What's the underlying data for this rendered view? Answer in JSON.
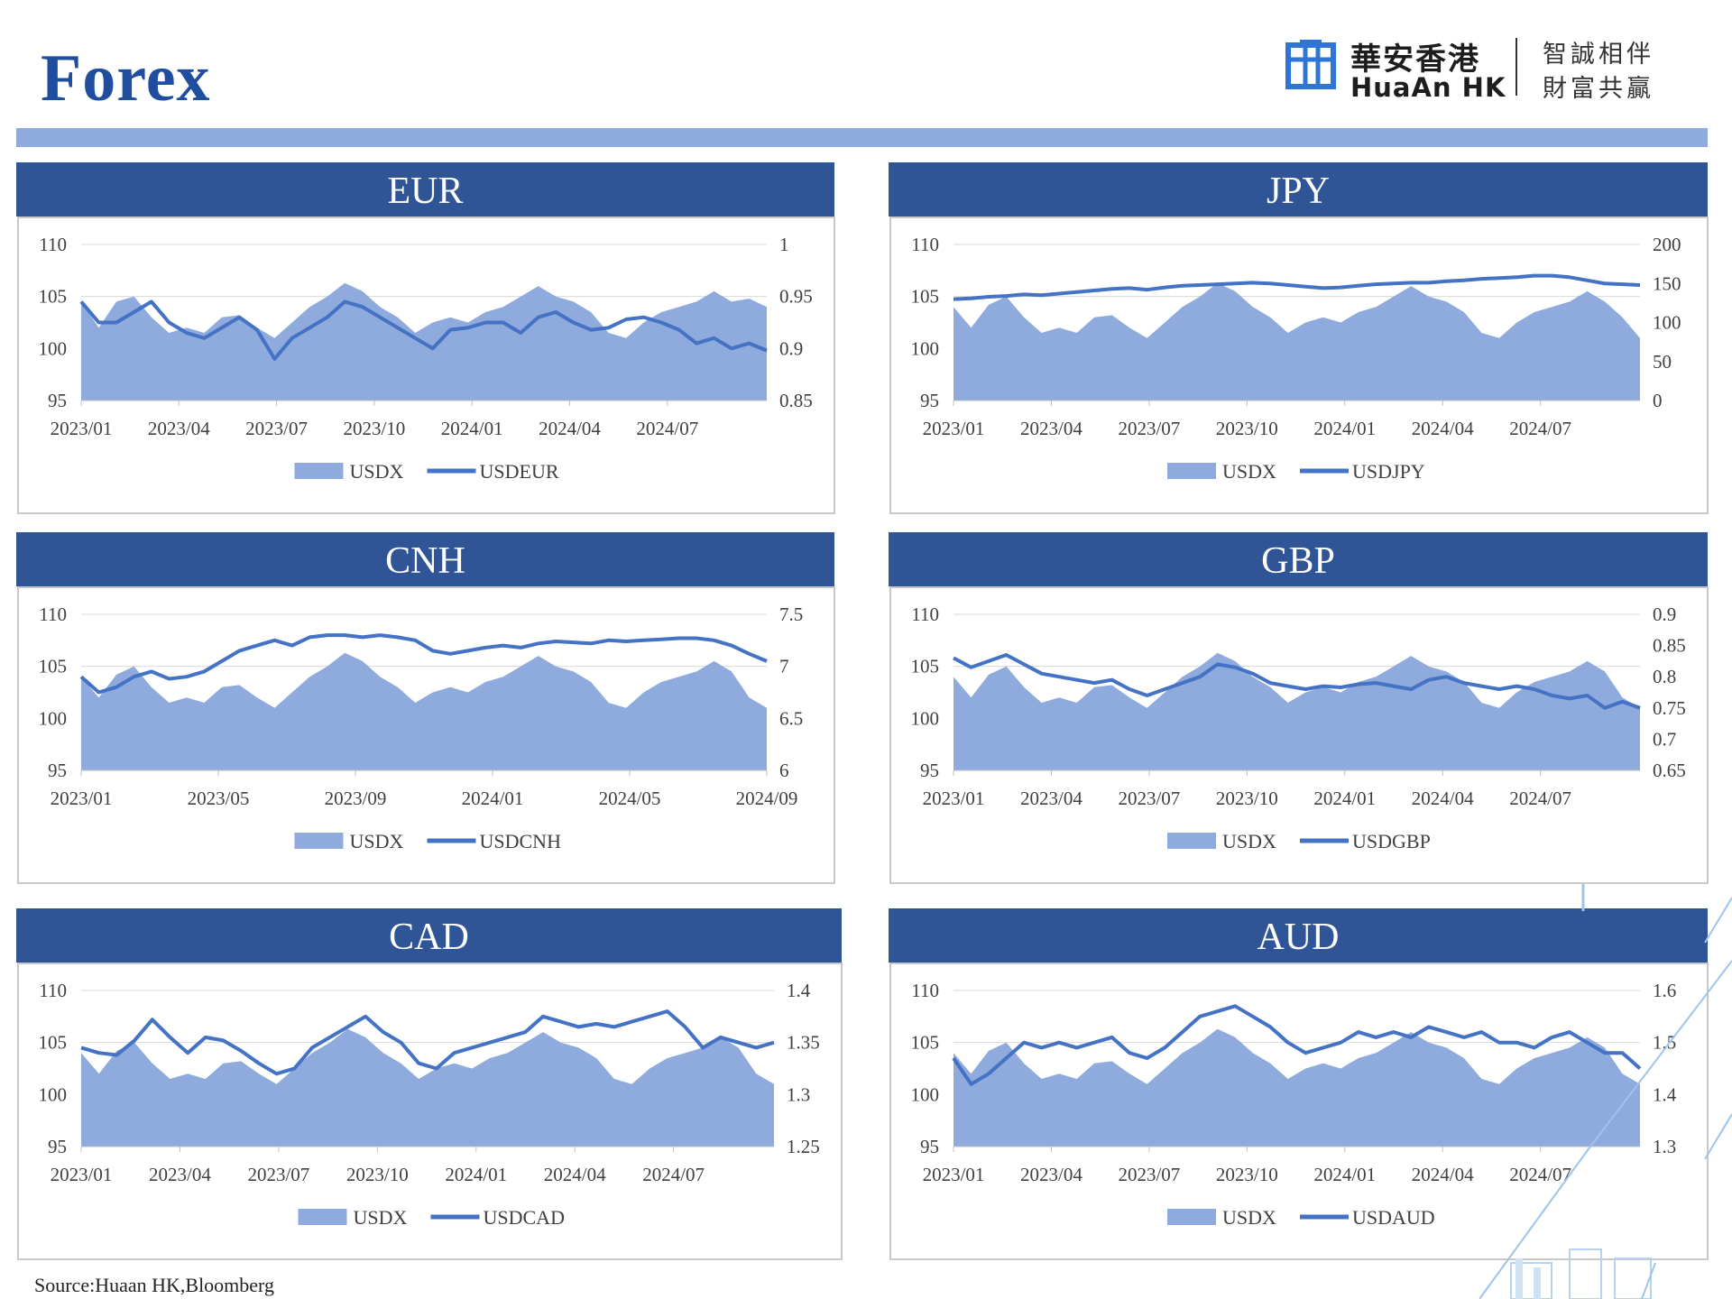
{
  "page": {
    "title": "Forex",
    "source": "Source:Huaan HK,Bloomberg",
    "accent_color": "#2f5597",
    "bar_color": "#8faadc",
    "area_color": "#8faadc",
    "line_color": "#4472c4"
  },
  "logo": {
    "name_cn": "華安香港",
    "name_en": "HuaAn HK",
    "slogan_line1": "智誠相伴",
    "slogan_line2": "財富共贏",
    "icon": "huaan-logo-mark"
  },
  "chart_data": [
    {
      "id": "eur",
      "title": "EUR",
      "type": "area+line",
      "x_ticks": [
        "2023/01",
        "2023/04",
        "2023/07",
        "2023/10",
        "2024/01",
        "2024/04",
        "2024/07"
      ],
      "y_left": {
        "ticks": [
          "110",
          "105",
          "100",
          "95"
        ],
        "range": [
          95,
          110
        ]
      },
      "y_right": {
        "ticks": [
          "1",
          "0.95",
          "0.9",
          "0.85"
        ],
        "range": [
          0.85,
          1.0
        ]
      },
      "legend": [
        "USDX",
        "USDEUR"
      ],
      "grid": true,
      "series": [
        {
          "name": "USDX",
          "type": "area",
          "axis": "left",
          "values": [
            104.5,
            102.0,
            104.5,
            105.0,
            103.0,
            101.5,
            102.0,
            101.5,
            103.0,
            103.2,
            102.0,
            101.0,
            102.5,
            104.0,
            105.0,
            106.3,
            105.5,
            104.0,
            103.0,
            101.5,
            102.5,
            103.0,
            102.5,
            103.5,
            104.0,
            105.0,
            106.0,
            105.0,
            104.5,
            103.5,
            101.5,
            101.0,
            102.5,
            103.5,
            104.0,
            104.5,
            105.5,
            104.5,
            104.8,
            104.0
          ]
        },
        {
          "name": "USDEUR",
          "type": "line",
          "axis": "right",
          "values": [
            0.945,
            0.925,
            0.925,
            0.935,
            0.945,
            0.925,
            0.915,
            0.91,
            0.92,
            0.93,
            0.918,
            0.89,
            0.91,
            0.92,
            0.93,
            0.945,
            0.94,
            0.93,
            0.92,
            0.91,
            0.9,
            0.918,
            0.92,
            0.925,
            0.925,
            0.915,
            0.93,
            0.935,
            0.925,
            0.918,
            0.92,
            0.928,
            0.93,
            0.925,
            0.918,
            0.905,
            0.91,
            0.9,
            0.905,
            0.898
          ]
        }
      ]
    },
    {
      "id": "jpy",
      "title": "JPY",
      "type": "area+line",
      "x_ticks": [
        "2023/01",
        "2023/04",
        "2023/07",
        "2023/10",
        "2024/01",
        "2024/04",
        "2024/07"
      ],
      "y_left": {
        "ticks": [
          "110",
          "105",
          "100",
          "95"
        ],
        "range": [
          95,
          110
        ]
      },
      "y_right": {
        "ticks": [
          "200",
          "150",
          "100",
          "50",
          "0"
        ],
        "range": [
          0,
          200
        ]
      },
      "legend": [
        "USDX",
        "USDJPY"
      ],
      "grid": true,
      "series": [
        {
          "name": "USDX",
          "type": "area",
          "axis": "left",
          "values": [
            104.0,
            102.0,
            104.2,
            105.0,
            103.0,
            101.5,
            102.0,
            101.5,
            103.0,
            103.2,
            102.0,
            101.0,
            102.5,
            104.0,
            105.0,
            106.3,
            105.5,
            104.0,
            103.0,
            101.5,
            102.5,
            103.0,
            102.5,
            103.5,
            104.0,
            105.0,
            106.0,
            105.0,
            104.5,
            103.5,
            101.5,
            101.0,
            102.5,
            103.5,
            104.0,
            104.5,
            105.5,
            104.5,
            103.0,
            101.0
          ]
        },
        {
          "name": "USDJPY",
          "type": "line",
          "axis": "right",
          "values": [
            130,
            131,
            133,
            134,
            136,
            135,
            137,
            139,
            141,
            143,
            144,
            142,
            145,
            147,
            148,
            149,
            150,
            151,
            150,
            148,
            146,
            144,
            145,
            147,
            149,
            150,
            151,
            151,
            153,
            154,
            156,
            157,
            158,
            160,
            160,
            158,
            154,
            150,
            149,
            148
          ]
        }
      ]
    },
    {
      "id": "cnh",
      "title": "CNH",
      "type": "area+line",
      "x_ticks": [
        "2023/01",
        "2023/05",
        "2023/09",
        "2024/01",
        "2024/05",
        "2024/09"
      ],
      "y_left": {
        "ticks": [
          "110",
          "105",
          "100",
          "95"
        ],
        "range": [
          95,
          110
        ]
      },
      "y_right": {
        "ticks": [
          "7.5",
          "7",
          "6.5",
          "6"
        ],
        "range": [
          6.0,
          7.5
        ]
      },
      "legend": [
        "USDX",
        "USDCNH"
      ],
      "grid": true,
      "series": [
        {
          "name": "USDX",
          "type": "area",
          "axis": "left",
          "values": [
            104.0,
            102.0,
            104.2,
            105.0,
            103.0,
            101.5,
            102.0,
            101.5,
            103.0,
            103.2,
            102.0,
            101.0,
            102.5,
            104.0,
            105.0,
            106.3,
            105.5,
            104.0,
            103.0,
            101.5,
            102.5,
            103.0,
            102.5,
            103.5,
            104.0,
            105.0,
            106.0,
            105.0,
            104.5,
            103.5,
            101.5,
            101.0,
            102.5,
            103.5,
            104.0,
            104.5,
            105.5,
            104.5,
            102.0,
            101.0
          ]
        },
        {
          "name": "USDCNH",
          "type": "line",
          "axis": "right",
          "values": [
            6.9,
            6.75,
            6.8,
            6.9,
            6.95,
            6.88,
            6.9,
            6.95,
            7.05,
            7.15,
            7.2,
            7.25,
            7.2,
            7.28,
            7.3,
            7.3,
            7.28,
            7.3,
            7.28,
            7.25,
            7.15,
            7.12,
            7.15,
            7.18,
            7.2,
            7.18,
            7.22,
            7.24,
            7.23,
            7.22,
            7.25,
            7.24,
            7.25,
            7.26,
            7.27,
            7.27,
            7.25,
            7.2,
            7.12,
            7.05
          ]
        }
      ]
    },
    {
      "id": "gbp",
      "title": "GBP",
      "type": "area+line",
      "x_ticks": [
        "2023/01",
        "2023/04",
        "2023/07",
        "2023/10",
        "2024/01",
        "2024/04",
        "2024/07"
      ],
      "y_left": {
        "ticks": [
          "110",
          "105",
          "100",
          "95"
        ],
        "range": [
          95,
          110
        ]
      },
      "y_right": {
        "ticks": [
          "0.9",
          "0.85",
          "0.8",
          "0.75",
          "0.7",
          "0.65"
        ],
        "range": [
          0.65,
          0.9
        ]
      },
      "legend": [
        "USDX",
        "USDGBP"
      ],
      "grid": true,
      "series": [
        {
          "name": "USDX",
          "type": "area",
          "axis": "left",
          "values": [
            104.0,
            102.0,
            104.2,
            105.0,
            103.0,
            101.5,
            102.0,
            101.5,
            103.0,
            103.2,
            102.0,
            101.0,
            102.5,
            104.0,
            105.0,
            106.3,
            105.5,
            104.0,
            103.0,
            101.5,
            102.5,
            103.0,
            102.5,
            103.5,
            104.0,
            105.0,
            106.0,
            105.0,
            104.5,
            103.5,
            101.5,
            101.0,
            102.5,
            103.5,
            104.0,
            104.5,
            105.5,
            104.5,
            102.0,
            101.0
          ]
        },
        {
          "name": "USDGBP",
          "type": "line",
          "axis": "right",
          "values": [
            0.83,
            0.815,
            0.825,
            0.835,
            0.82,
            0.805,
            0.8,
            0.795,
            0.79,
            0.795,
            0.78,
            0.77,
            0.78,
            0.79,
            0.8,
            0.82,
            0.815,
            0.805,
            0.79,
            0.785,
            0.78,
            0.785,
            0.783,
            0.788,
            0.79,
            0.785,
            0.78,
            0.795,
            0.8,
            0.79,
            0.785,
            0.78,
            0.785,
            0.78,
            0.77,
            0.765,
            0.77,
            0.75,
            0.76,
            0.75
          ]
        }
      ]
    },
    {
      "id": "cad",
      "title": "CAD",
      "type": "area+line",
      "x_ticks": [
        "2023/01",
        "2023/04",
        "2023/07",
        "2023/10",
        "2024/01",
        "2024/04",
        "2024/07"
      ],
      "y_left": {
        "ticks": [
          "110",
          "105",
          "100",
          "95"
        ],
        "range": [
          95,
          110
        ]
      },
      "y_right": {
        "ticks": [
          "1.4",
          "1.35",
          "1.3",
          "1.25"
        ],
        "range": [
          1.25,
          1.4
        ]
      },
      "legend": [
        "USDX",
        "USDCAD"
      ],
      "grid": true,
      "series": [
        {
          "name": "USDX",
          "type": "area",
          "axis": "left",
          "values": [
            104.0,
            102.0,
            104.2,
            105.0,
            103.0,
            101.5,
            102.0,
            101.5,
            103.0,
            103.2,
            102.0,
            101.0,
            102.5,
            104.0,
            105.0,
            106.3,
            105.5,
            104.0,
            103.0,
            101.5,
            102.5,
            103.0,
            102.5,
            103.5,
            104.0,
            105.0,
            106.0,
            105.0,
            104.5,
            103.5,
            101.5,
            101.0,
            102.5,
            103.5,
            104.0,
            104.5,
            105.5,
            104.5,
            102.0,
            101.0
          ]
        },
        {
          "name": "USDCAD",
          "type": "line",
          "axis": "right",
          "values": [
            1.345,
            1.34,
            1.338,
            1.352,
            1.372,
            1.355,
            1.34,
            1.355,
            1.352,
            1.342,
            1.33,
            1.32,
            1.325,
            1.345,
            1.355,
            1.365,
            1.375,
            1.36,
            1.35,
            1.33,
            1.325,
            1.34,
            1.345,
            1.35,
            1.355,
            1.36,
            1.375,
            1.37,
            1.365,
            1.368,
            1.365,
            1.37,
            1.375,
            1.38,
            1.365,
            1.345,
            1.355,
            1.35,
            1.345,
            1.35
          ]
        }
      ]
    },
    {
      "id": "aud",
      "title": "AUD",
      "type": "area+line",
      "x_ticks": [
        "2023/01",
        "2023/04",
        "2023/07",
        "2023/10",
        "2024/01",
        "2024/04",
        "2024/07"
      ],
      "y_left": {
        "ticks": [
          "110",
          "105",
          "100",
          "95"
        ],
        "range": [
          95,
          110
        ]
      },
      "y_right": {
        "ticks": [
          "1.6",
          "1.5",
          "1.4",
          "1.3"
        ],
        "range": [
          1.3,
          1.6
        ]
      },
      "legend": [
        "USDX",
        "USDAUD"
      ],
      "grid": true,
      "series": [
        {
          "name": "USDX",
          "type": "area",
          "axis": "left",
          "values": [
            104.0,
            102.0,
            104.2,
            105.0,
            103.0,
            101.5,
            102.0,
            101.5,
            103.0,
            103.2,
            102.0,
            101.0,
            102.5,
            104.0,
            105.0,
            106.3,
            105.5,
            104.0,
            103.0,
            101.5,
            102.5,
            103.0,
            102.5,
            103.5,
            104.0,
            105.0,
            106.0,
            105.0,
            104.5,
            103.5,
            101.5,
            101.0,
            102.5,
            103.5,
            104.0,
            104.5,
            105.5,
            104.5,
            102.0,
            101.0
          ]
        },
        {
          "name": "USDAUD",
          "type": "line",
          "axis": "right",
          "values": [
            1.47,
            1.42,
            1.44,
            1.47,
            1.5,
            1.49,
            1.5,
            1.49,
            1.5,
            1.51,
            1.48,
            1.47,
            1.49,
            1.52,
            1.55,
            1.56,
            1.57,
            1.55,
            1.53,
            1.5,
            1.48,
            1.49,
            1.5,
            1.52,
            1.51,
            1.52,
            1.51,
            1.53,
            1.52,
            1.51,
            1.52,
            1.5,
            1.5,
            1.49,
            1.51,
            1.52,
            1.5,
            1.48,
            1.48,
            1.45
          ]
        }
      ]
    }
  ]
}
